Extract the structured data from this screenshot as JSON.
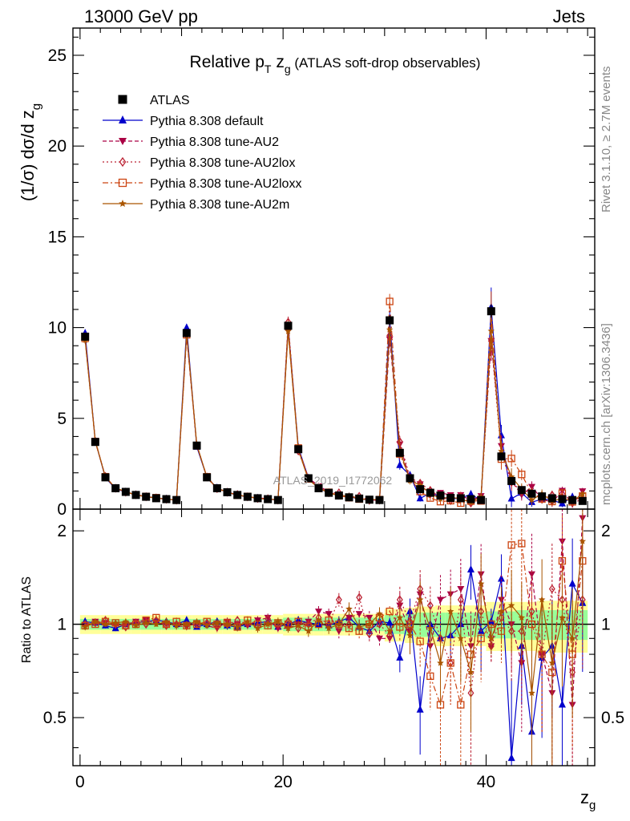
{
  "header": {
    "left": "13000 GeV pp",
    "right": "Jets"
  },
  "side_labels": {
    "rivet": "Rivet 3.1.10, ≥ 2.7M events",
    "mcplots": "mcplots.cern.ch [arXiv:1306.3436]"
  },
  "watermark": "ATLAS_2019_I1772062",
  "chart_data": {
    "type": "line",
    "title": {
      "main": "Relative p",
      "sub1": "T",
      "mid": " z",
      "sub2": "g",
      "rest": " (ATLAS soft-drop observables)"
    },
    "xlabel": {
      "main": "z",
      "sub": "g"
    },
    "ylabel": {
      "pre": "(1/σ) dσ/d z",
      "sub": "g"
    },
    "ratio_ylabel": "Ratio to ATLAS",
    "xlim": [
      -0.7,
      50.7
    ],
    "ylim": [
      0,
      26.5
    ],
    "ratio_ylim": [
      0.35,
      2.35
    ],
    "x_ticks": [
      0,
      20,
      40
    ],
    "x_tick_labels": [
      "0",
      "20",
      "40"
    ],
    "y_ticks": [
      0,
      5,
      10,
      15,
      20,
      25
    ],
    "y_tick_labels": [
      "0",
      "5",
      "10",
      "15",
      "20",
      "25"
    ],
    "ratio_ticks": [
      0.5,
      1,
      2
    ],
    "ratio_tick_labels": [
      "0.5",
      "1",
      "2"
    ],
    "x": [
      0.5,
      1.5,
      2.5,
      3.5,
      4.5,
      5.5,
      6.5,
      7.5,
      8.5,
      9.5,
      10.5,
      11.5,
      12.5,
      13.5,
      14.5,
      15.5,
      16.5,
      17.5,
      18.5,
      19.5,
      20.5,
      21.5,
      22.5,
      23.5,
      24.5,
      25.5,
      26.5,
      27.5,
      28.5,
      29.5,
      30.5,
      31.5,
      32.5,
      33.5,
      34.5,
      35.5,
      36.5,
      37.5,
      38.5,
      39.5,
      40.5,
      41.5,
      42.5,
      43.5,
      44.5,
      45.5,
      46.5,
      47.5,
      48.5,
      49.5
    ],
    "data_values": [
      9.5,
      3.7,
      1.75,
      1.15,
      0.95,
      0.78,
      0.68,
      0.6,
      0.55,
      0.5,
      9.7,
      3.5,
      1.75,
      1.15,
      0.93,
      0.78,
      0.68,
      0.6,
      0.55,
      0.5,
      10.1,
      3.3,
      1.7,
      1.15,
      0.9,
      0.75,
      0.65,
      0.58,
      0.52,
      0.5,
      10.4,
      3.1,
      1.7,
      1.1,
      0.9,
      0.75,
      0.62,
      0.6,
      0.55,
      0.5,
      10.9,
      2.9,
      1.55,
      1.05,
      0.85,
      0.7,
      0.6,
      0.55,
      0.5,
      0.45
    ],
    "data_errors": [
      0.15,
      0.08,
      0.05,
      0.04,
      0.04,
      0.03,
      0.03,
      0.03,
      0.03,
      0.03,
      0.15,
      0.08,
      0.05,
      0.04,
      0.04,
      0.03,
      0.03,
      0.03,
      0.03,
      0.03,
      0.18,
      0.08,
      0.05,
      0.04,
      0.04,
      0.03,
      0.03,
      0.03,
      0.03,
      0.03,
      0.25,
      0.15,
      0.08,
      0.06,
      0.05,
      0.05,
      0.05,
      0.05,
      0.05,
      0.05,
      0.35,
      0.2,
      0.12,
      0.1,
      0.08,
      0.08,
      0.08,
      0.08,
      0.08,
      0.08
    ],
    "band_inner": [
      0.04,
      0.04,
      0.04,
      0.04,
      0.04,
      0.04,
      0.04,
      0.04,
      0.04,
      0.04,
      0.04,
      0.04,
      0.04,
      0.04,
      0.04,
      0.04,
      0.04,
      0.04,
      0.04,
      0.04,
      0.05,
      0.05,
      0.05,
      0.05,
      0.05,
      0.05,
      0.05,
      0.05,
      0.05,
      0.05,
      0.07,
      0.07,
      0.08,
      0.09,
      0.09,
      0.09,
      0.09,
      0.09,
      0.09,
      0.09,
      0.1,
      0.1,
      0.1,
      0.11,
      0.11,
      0.11,
      0.11,
      0.11,
      0.11,
      0.11
    ],
    "band_outer": [
      0.07,
      0.07,
      0.07,
      0.07,
      0.07,
      0.07,
      0.07,
      0.07,
      0.07,
      0.07,
      0.07,
      0.07,
      0.07,
      0.07,
      0.07,
      0.07,
      0.07,
      0.07,
      0.07,
      0.07,
      0.08,
      0.08,
      0.08,
      0.08,
      0.08,
      0.08,
      0.08,
      0.08,
      0.08,
      0.08,
      0.12,
      0.12,
      0.13,
      0.14,
      0.14,
      0.15,
      0.15,
      0.15,
      0.15,
      0.15,
      0.18,
      0.18,
      0.18,
      0.18,
      0.18,
      0.19,
      0.19,
      0.19,
      0.19,
      0.19
    ],
    "legend_placement": "top-left",
    "series": [
      {
        "name": "ATLAS",
        "kind": "data",
        "color": "#000000",
        "marker": "square"
      },
      {
        "name": "Pythia 8.308 default",
        "kind": "mc",
        "color": "#0000cc",
        "marker": "triangle-up",
        "dash": "",
        "ratio": [
          1.02,
          1.01,
          0.99,
          0.97,
          1.0,
          1.01,
          1.02,
          1.03,
          1.02,
          1.0,
          1.03,
          0.98,
          1.0,
          1.02,
          0.99,
          0.98,
          1.0,
          1.01,
          1.02,
          0.98,
          1.0,
          1.03,
          1.01,
          1.0,
          0.99,
          1.02,
          1.05,
          0.98,
          0.95,
          1.02,
          1.01,
          0.78,
          1.1,
          0.53,
          1.0,
          0.9,
          0.92,
          1.0,
          1.5,
          0.95,
          1.02,
          1.4,
          0.37,
          0.85,
          0.45,
          0.78,
          0.85,
          0.55,
          1.35,
          1.17
        ],
        "err": [
          0.02,
          0.02,
          0.02,
          0.02,
          0.02,
          0.02,
          0.02,
          0.02,
          0.02,
          0.02,
          0.02,
          0.02,
          0.02,
          0.02,
          0.03,
          0.03,
          0.03,
          0.03,
          0.03,
          0.03,
          0.03,
          0.03,
          0.03,
          0.04,
          0.04,
          0.04,
          0.04,
          0.05,
          0.05,
          0.05,
          0.04,
          0.08,
          0.1,
          0.15,
          0.15,
          0.15,
          0.15,
          0.2,
          0.2,
          0.25,
          0.1,
          0.2,
          0.3,
          0.3,
          0.3,
          0.35,
          0.35,
          0.35,
          0.4,
          0.4
        ]
      },
      {
        "name": "Pythia 8.308 tune-AU2",
        "kind": "mc",
        "color": "#aa0044",
        "marker": "triangle-down",
        "dash": "5,3",
        "ratio": [
          0.98,
          1.02,
          1.01,
          0.99,
          1.0,
          1.02,
          1.03,
          1.01,
          1.0,
          0.99,
          0.98,
          1.01,
          0.99,
          0.97,
          1.02,
          1.0,
          0.99,
          1.03,
          1.05,
          0.97,
          0.97,
          1.0,
          1.02,
          1.1,
          1.08,
          0.95,
          1.05,
          1.08,
          1.05,
          0.9,
          0.9,
          1.15,
          0.95,
          1.25,
          0.85,
          1.2,
          1.25,
          1.3,
          0.85,
          1.45,
          0.85,
          1.2,
          1.0,
          0.75,
          1.45,
          0.8,
          0.6,
          1.85,
          0.55,
          2.2
        ],
        "err": [
          0.02,
          0.02,
          0.02,
          0.02,
          0.02,
          0.02,
          0.02,
          0.02,
          0.03,
          0.03,
          0.02,
          0.02,
          0.02,
          0.03,
          0.03,
          0.03,
          0.03,
          0.03,
          0.03,
          0.03,
          0.03,
          0.03,
          0.04,
          0.04,
          0.04,
          0.05,
          0.05,
          0.05,
          0.05,
          0.05,
          0.04,
          0.1,
          0.12,
          0.15,
          0.15,
          0.2,
          0.2,
          0.25,
          0.25,
          0.25,
          0.1,
          0.2,
          0.3,
          0.3,
          0.35,
          0.35,
          0.4,
          0.4,
          0.4,
          0.4
        ]
      },
      {
        "name": "Pythia 8.308 tune-AU2lox",
        "kind": "mc",
        "color": "#bb2233",
        "marker": "diamond-open",
        "dash": "2,3",
        "ratio": [
          1.0,
          1.01,
          1.03,
          1.0,
          0.98,
          1.01,
          1.0,
          1.03,
          0.99,
          1.0,
          0.99,
          1.0,
          1.01,
          0.98,
          1.0,
          1.03,
          1.0,
          0.98,
          1.04,
          1.0,
          1.02,
          0.97,
          1.0,
          1.05,
          1.0,
          1.2,
          1.0,
          1.22,
          0.93,
          1.0,
          0.92,
          1.2,
          1.02,
          1.3,
          1.15,
          0.9,
          0.75,
          1.2,
          0.6,
          1.1,
          0.85,
          1.05,
          0.95,
          0.95,
          1.1,
          0.8,
          1.3,
          1.2,
          0.7,
          1.2
        ],
        "err": [
          0.02,
          0.02,
          0.02,
          0.02,
          0.02,
          0.02,
          0.02,
          0.02,
          0.03,
          0.03,
          0.02,
          0.02,
          0.02,
          0.03,
          0.03,
          0.03,
          0.03,
          0.03,
          0.03,
          0.03,
          0.03,
          0.03,
          0.04,
          0.04,
          0.04,
          0.05,
          0.05,
          0.05,
          0.05,
          0.05,
          0.04,
          0.1,
          0.12,
          0.15,
          0.15,
          0.2,
          0.2,
          0.25,
          0.25,
          0.25,
          0.1,
          0.2,
          0.3,
          0.3,
          0.35,
          0.35,
          0.4,
          0.4,
          0.4,
          0.4
        ]
      },
      {
        "name": "Pythia 8.308 tune-AU2loxx",
        "kind": "mc",
        "color": "#cc4411",
        "marker": "square-open",
        "dash": "7,3,2,3",
        "ratio": [
          0.99,
          1.0,
          1.02,
          1.01,
          0.99,
          1.0,
          1.03,
          1.05,
          1.0,
          1.02,
          0.99,
          1.0,
          1.02,
          1.0,
          1.01,
          0.98,
          1.03,
          1.0,
          0.99,
          1.01,
          1.0,
          1.02,
          0.98,
          1.0,
          1.03,
          1.0,
          0.97,
          0.95,
          1.0,
          1.05,
          1.1,
          0.98,
          1.0,
          0.88,
          0.68,
          0.55,
          0.75,
          0.55,
          0.8,
          0.9,
          1.0,
          0.95,
          1.8,
          1.82,
          1.0,
          0.8,
          0.7,
          1.6,
          0.8,
          1.6
        ],
        "err": [
          0.02,
          0.02,
          0.02,
          0.02,
          0.02,
          0.02,
          0.02,
          0.02,
          0.03,
          0.03,
          0.02,
          0.02,
          0.02,
          0.03,
          0.03,
          0.03,
          0.03,
          0.03,
          0.03,
          0.03,
          0.03,
          0.03,
          0.04,
          0.04,
          0.04,
          0.05,
          0.05,
          0.05,
          0.05,
          0.05,
          0.04,
          0.1,
          0.12,
          0.15,
          0.15,
          0.2,
          0.2,
          0.25,
          0.25,
          0.25,
          0.1,
          0.2,
          0.3,
          0.3,
          0.35,
          0.35,
          0.4,
          0.4,
          0.4,
          0.4
        ]
      },
      {
        "name": "Pythia 8.308 tune-AU2m",
        "kind": "mc",
        "color": "#aa5500",
        "marker": "star",
        "dash": "",
        "ratio": [
          0.98,
          1.02,
          1.0,
          1.01,
          1.02,
          0.99,
          1.01,
          1.0,
          1.02,
          0.99,
          1.0,
          1.02,
          0.99,
          1.01,
          1.0,
          0.98,
          1.02,
          0.97,
          1.0,
          1.02,
          0.97,
          0.99,
          0.95,
          1.03,
          0.97,
          1.0,
          1.12,
          0.98,
          1.0,
          1.08,
          0.95,
          1.05,
          0.92,
          1.2,
          0.97,
          0.75,
          1.1,
          0.9,
          0.7,
          1.35,
          0.9,
          1.1,
          1.15,
          1.05,
          0.6,
          1.2,
          0.75,
          1.05,
          0.9,
          1.85
        ],
        "err": [
          0.02,
          0.02,
          0.02,
          0.02,
          0.02,
          0.02,
          0.02,
          0.02,
          0.03,
          0.03,
          0.02,
          0.02,
          0.02,
          0.03,
          0.03,
          0.03,
          0.03,
          0.03,
          0.03,
          0.03,
          0.03,
          0.03,
          0.04,
          0.04,
          0.04,
          0.05,
          0.05,
          0.05,
          0.05,
          0.05,
          0.04,
          0.1,
          0.12,
          0.15,
          0.15,
          0.2,
          0.2,
          0.25,
          0.25,
          0.25,
          0.1,
          0.2,
          0.3,
          0.3,
          0.35,
          0.35,
          0.4,
          0.4,
          0.4,
          0.4
        ]
      }
    ]
  }
}
